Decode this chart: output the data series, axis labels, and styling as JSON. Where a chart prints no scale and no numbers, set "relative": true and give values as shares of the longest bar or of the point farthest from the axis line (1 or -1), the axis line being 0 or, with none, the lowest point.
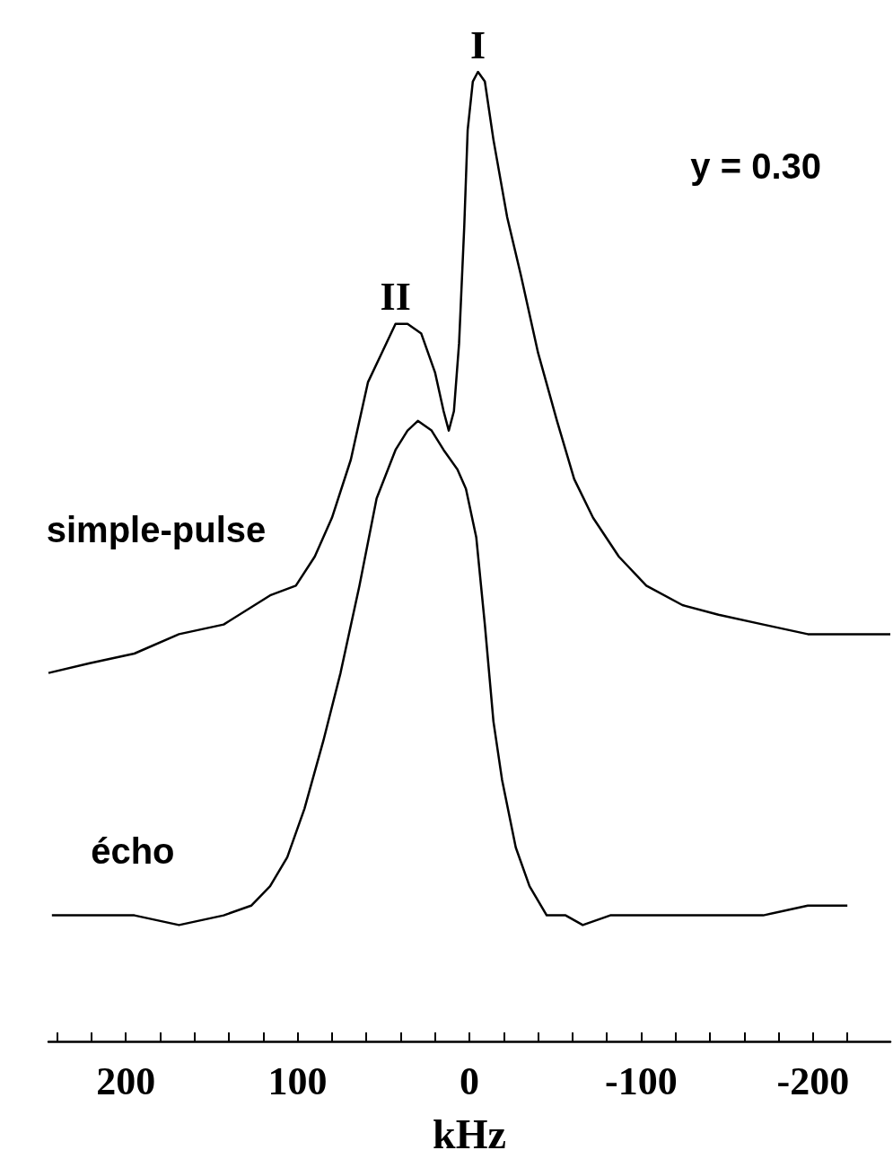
{
  "chart_data": {
    "type": "line",
    "relative": true,
    "xlabel": "kHz",
    "xlim": [
      245,
      -245
    ],
    "xticks": [
      {
        "value": 240,
        "label": null
      },
      {
        "value": 220,
        "label": null
      },
      200,
      {
        "value": 180,
        "label": null
      },
      {
        "value": 160,
        "label": null
      },
      {
        "value": 140,
        "label": null
      },
      {
        "value": 120,
        "label": null
      },
      100,
      {
        "value": 80,
        "label": null
      },
      {
        "value": 60,
        "label": null
      },
      {
        "value": 40,
        "label": null
      },
      {
        "value": 20,
        "label": null
      },
      0,
      {
        "value": -20,
        "label": null
      },
      {
        "value": -40,
        "label": null
      },
      {
        "value": -60,
        "label": null
      },
      {
        "value": -80,
        "label": null
      },
      -100,
      {
        "value": -120,
        "label": null
      },
      {
        "value": -140,
        "label": null
      },
      {
        "value": -160,
        "label": null
      },
      {
        "value": -180,
        "label": null
      },
      -200,
      {
        "value": -220,
        "label": null
      }
    ],
    "tick_labels": "x",
    "grid": false,
    "legend": false,
    "line_style": "solid",
    "series": [
      {
        "name": "simple-pulse",
        "color": "#000000",
        "x": [
          245,
          221,
          195,
          169,
          143,
          116,
          101,
          90,
          80,
          69,
          59,
          51,
          43,
          36,
          28,
          20,
          15,
          12,
          9,
          6,
          3,
          1,
          -2,
          -5,
          -9,
          -14,
          -22,
          -30,
          -40,
          -51,
          -61,
          -72,
          -87,
          -103,
          -124,
          -145,
          -171,
          -197,
          -223,
          -245
        ],
        "values": [
          0.38,
          0.39,
          0.4,
          0.42,
          0.43,
          0.46,
          0.47,
          0.5,
          0.54,
          0.6,
          0.68,
          0.71,
          0.74,
          0.74,
          0.73,
          0.69,
          0.65,
          0.63,
          0.65,
          0.72,
          0.84,
          0.94,
          0.99,
          1.0,
          0.99,
          0.93,
          0.85,
          0.79,
          0.71,
          0.64,
          0.58,
          0.54,
          0.5,
          0.47,
          0.45,
          0.44,
          0.43,
          0.42,
          0.42,
          0.42
        ]
      },
      {
        "name": "écho",
        "color": "#000000",
        "x": [
          243,
          221,
          195,
          169,
          143,
          127,
          116,
          106,
          96,
          85,
          75,
          64,
          54,
          43,
          36,
          30,
          22,
          15,
          7,
          2,
          -4,
          -9,
          -14,
          -19,
          -27,
          -35,
          -45,
          -56,
          -66,
          -82,
          -103,
          -134,
          -171,
          -197,
          -220
        ],
        "values": [
          0.13,
          0.13,
          0.13,
          0.12,
          0.13,
          0.14,
          0.16,
          0.19,
          0.24,
          0.31,
          0.38,
          0.47,
          0.56,
          0.61,
          0.63,
          0.64,
          0.63,
          0.61,
          0.59,
          0.57,
          0.52,
          0.43,
          0.33,
          0.27,
          0.2,
          0.16,
          0.13,
          0.13,
          0.12,
          0.13,
          0.13,
          0.13,
          0.13,
          0.14,
          0.14
        ]
      }
    ],
    "annotations": [
      {
        "text": "I",
        "x": -5,
        "y": 1.0
      },
      {
        "text": "II",
        "x": 43,
        "y": 0.74
      },
      "y = 0.30"
    ]
  }
}
